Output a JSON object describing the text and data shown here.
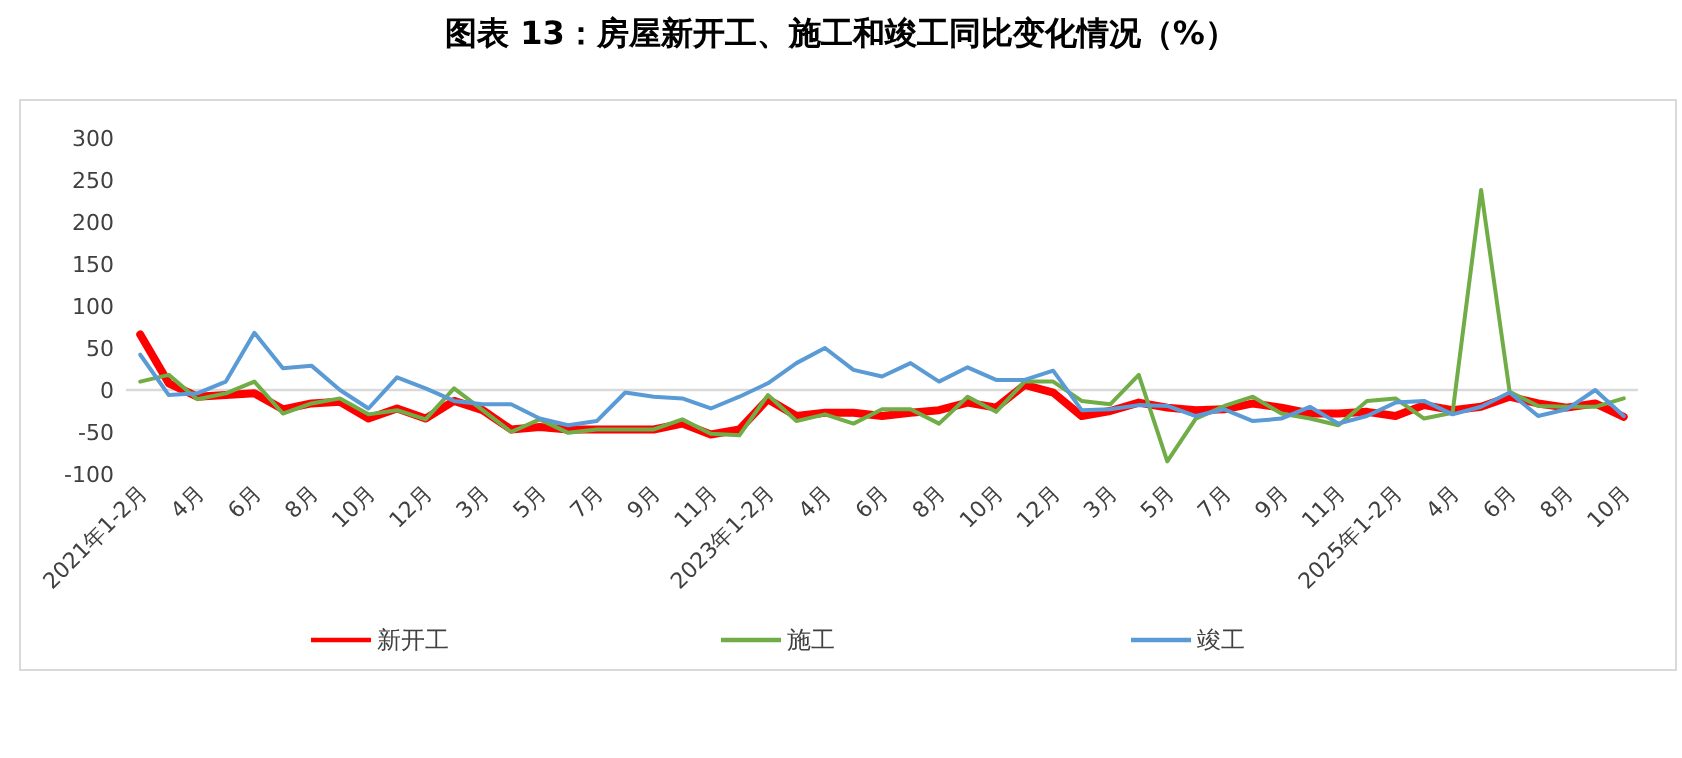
{
  "chart_data": {
    "type": "line",
    "title": "图表 13：房屋新开工、施工和竣工同比变化情况（%）",
    "categories": [
      "2021年1-2月",
      null,
      "4月",
      null,
      "6月",
      null,
      "8月",
      null,
      "10月",
      null,
      "12月",
      null,
      "3月",
      null,
      "5月",
      null,
      "7月",
      null,
      "9月",
      null,
      "11月",
      null,
      "2023年1-2月",
      null,
      "4月",
      null,
      "6月",
      null,
      "8月",
      null,
      "10月",
      null,
      "12月",
      null,
      "3月",
      null,
      "5月",
      null,
      "7月",
      null,
      "9月",
      null,
      "11月",
      null,
      "2025年1-2月",
      null,
      "4月",
      null,
      "6月",
      null,
      "8月",
      null,
      "10月"
    ],
    "series": [
      {
        "name": "新开工",
        "color": "#ff0000",
        "values": [
          66,
          8,
          -8,
          -6,
          -4,
          -23,
          -16,
          -14,
          -34,
          -22,
          -34,
          -13,
          -24,
          -47,
          -44,
          -47,
          -47,
          -47,
          -47,
          -40,
          -53,
          -47,
          -11,
          -31,
          -27,
          -27,
          -31,
          -27,
          -24,
          -15,
          -21,
          6,
          -3,
          -31,
          -25,
          -15,
          -21,
          -24,
          -23,
          -16,
          -21,
          -28,
          -28,
          -26,
          -31,
          -18,
          -24,
          -20,
          -8,
          -16,
          -21,
          -16,
          -32
        ]
      },
      {
        "name": "施工",
        "color": "#70ad47",
        "values": [
          10,
          18,
          -11,
          -4,
          10,
          -28,
          -16,
          -10,
          -29,
          -24,
          -35,
          2,
          -24,
          -50,
          -35,
          -51,
          -47,
          -47,
          -47,
          -35,
          -52,
          -54,
          -6,
          -37,
          -29,
          -40,
          -23,
          -23,
          -40,
          -8,
          -26,
          10,
          10,
          -13,
          -17,
          18,
          -85,
          -34,
          -19,
          -8,
          -28,
          -34,
          -42,
          -13,
          -10,
          -34,
          -27,
          238,
          -2,
          -19,
          -20,
          -20,
          -10
        ]
      },
      {
        "name": "竣工",
        "color": "#5b9bd5",
        "values": [
          42,
          -6,
          -4,
          10,
          68,
          26,
          29,
          0,
          -22,
          15,
          2,
          -13,
          -17,
          -17,
          -34,
          -42,
          -37,
          -3,
          -8,
          -10,
          -22,
          -8,
          8,
          32,
          50,
          24,
          16,
          32,
          10,
          27,
          12,
          12,
          23,
          -24,
          -23,
          -18,
          -19,
          -31,
          -23,
          -37,
          -34,
          -20,
          -40,
          -31,
          -15,
          -13,
          -29,
          -20,
          -3,
          -31,
          -23,
          0,
          -31
        ]
      }
    ],
    "ylim": [
      -100,
      300
    ],
    "yticks": [
      -100,
      -50,
      0,
      50,
      100,
      150,
      200,
      250,
      300
    ],
    "ref_lines": [
      {
        "axis": "y",
        "value": 0,
        "color": "#d9d9d9"
      }
    ],
    "grid": false,
    "legend": "bottom",
    "marker": "none",
    "line_style": "solid"
  }
}
